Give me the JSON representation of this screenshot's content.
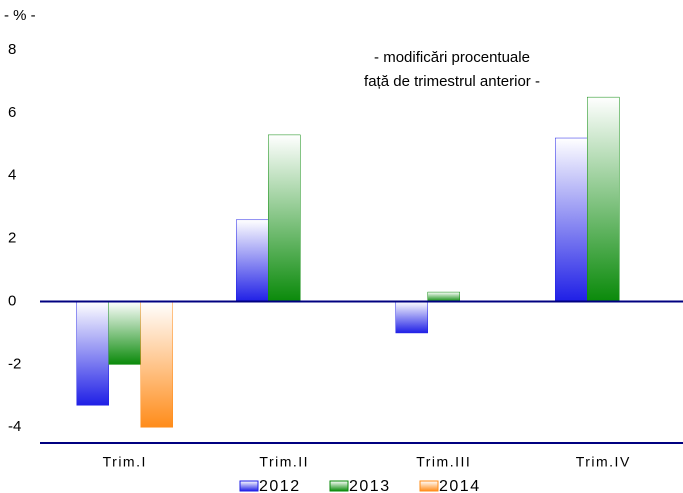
{
  "chart_data": {
    "type": "bar",
    "unit_label": "- % -",
    "annotation": [
      "- modificări procentuale",
      "față de trimestrul anterior -"
    ],
    "categories": [
      "Trim.I",
      "Trim.II",
      "Trim.III",
      "Trim.IV"
    ],
    "series": [
      {
        "name": "2012",
        "color": "#1f1fe6",
        "values": [
          -3.3,
          2.6,
          -1.0,
          5.2
        ]
      },
      {
        "name": "2013",
        "color": "#0a8a0a",
        "values": [
          -2.0,
          5.3,
          0.3,
          6.5
        ]
      },
      {
        "name": "2014",
        "color": "#ff8c1a",
        "values": [
          -4.0,
          null,
          null,
          null
        ]
      }
    ],
    "ylim": [
      -4.5,
      8
    ],
    "yticks": [
      -4,
      -2,
      0,
      2,
      4,
      6,
      8
    ]
  }
}
